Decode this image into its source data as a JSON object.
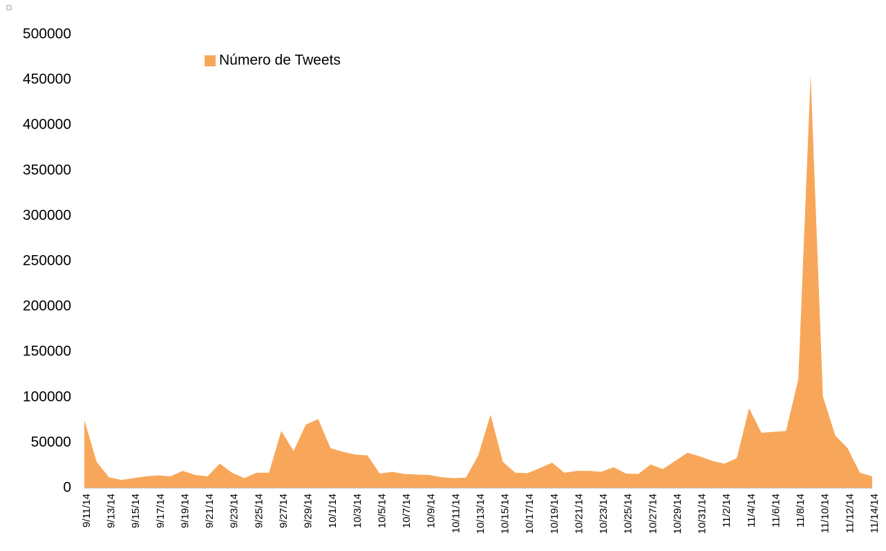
{
  "chart_data": {
    "type": "area",
    "categories": [
      "9/11/14",
      null,
      "9/13/14",
      null,
      "9/15/14",
      null,
      "9/17/14",
      null,
      "9/19/14",
      null,
      "9/21/14",
      null,
      "9/23/14",
      null,
      "9/25/14",
      null,
      "9/27/14",
      null,
      "9/29/14",
      null,
      "10/1/14",
      null,
      "10/3/14",
      null,
      "10/5/14",
      null,
      "10/7/14",
      null,
      "10/9/14",
      null,
      "10/11/14",
      null,
      "10/13/14",
      null,
      "10/15/14",
      null,
      "10/17/14",
      null,
      "10/19/14",
      null,
      "10/21/14",
      null,
      "10/23/14",
      null,
      "10/25/14",
      null,
      "10/27/14",
      null,
      "10/29/14",
      null,
      "10/31/14",
      null,
      "11/2/14",
      null,
      "11/4/14",
      null,
      "11/6/14",
      null,
      "11/8/14",
      null,
      "11/10/14",
      null,
      "11/12/14",
      null,
      "11/14/14"
    ],
    "series": [
      {
        "name": "Número de Tweets",
        "color": "#f8a75a",
        "values": [
          75000,
          29000,
          12000,
          9000,
          11000,
          13000,
          14000,
          13000,
          19000,
          14500,
          13000,
          27000,
          17000,
          11000,
          17000,
          17000,
          63000,
          41000,
          70000,
          76000,
          44000,
          40000,
          37000,
          36000,
          16000,
          18000,
          15500,
          15000,
          14500,
          12000,
          11000,
          11500,
          36000,
          81000,
          29000,
          17000,
          16500,
          22000,
          28000,
          17000,
          19000,
          19000,
          18000,
          23000,
          16000,
          15500,
          26000,
          21000,
          30000,
          39000,
          35000,
          30000,
          27000,
          33000,
          88000,
          61000,
          62000,
          63000,
          120000,
          455000,
          101000,
          58000,
          44000,
          17000,
          13000
        ]
      }
    ],
    "ylim": [
      0,
      500000
    ],
    "yticks": [
      0,
      50000,
      100000,
      150000,
      200000,
      250000,
      300000,
      350000,
      400000,
      450000,
      500000
    ],
    "grid": false,
    "legend": "top"
  }
}
